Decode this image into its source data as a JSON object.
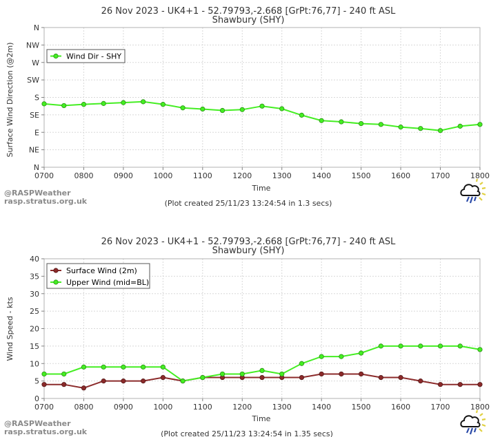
{
  "colors": {
    "green": "#44ee22",
    "green_dark": "#22aa11",
    "maroon": "#8b2a2a",
    "maroon_dark": "#5a1010"
  },
  "footer": {
    "brand_top": "@RASPWeather",
    "brand_bottom": "rasp.stratus.org.uk",
    "icon": "rain-cloud-sun-icon"
  },
  "chart_data": [
    {
      "type": "line",
      "title": "26 Nov 2023 - UK4+1 - 52.79793,-2.668 [GrPt:76,77]  - 240 ft ASL",
      "subtitle": "Shawbury (SHY)",
      "xlabel": "Time",
      "ylabel": "Surface Wind Direction (@2m)",
      "x": [
        "0700",
        "0730",
        "0800",
        "0830",
        "0900",
        "0930",
        "1000",
        "1030",
        "1100",
        "1130",
        "1200",
        "1230",
        "1300",
        "1330",
        "1400",
        "1430",
        "1500",
        "1530",
        "1600",
        "1630",
        "1700",
        "1730",
        "1800"
      ],
      "x_ticks": [
        "0700",
        "0800",
        "0900",
        "1000",
        "1100",
        "1200",
        "1300",
        "1400",
        "1500",
        "1600",
        "1700",
        "1800"
      ],
      "y_ticks": [
        "N",
        "NE",
        "E",
        "SE",
        "S",
        "SW",
        "W",
        "NW",
        "N"
      ],
      "ylim": [
        0,
        8
      ],
      "grid": true,
      "legend_position": "top-left",
      "series": [
        {
          "name": "Wind Dir - SHY",
          "color": "#44ee22",
          "values": [
            3.63,
            3.53,
            3.6,
            3.65,
            3.7,
            3.75,
            3.6,
            3.4,
            3.33,
            3.25,
            3.3,
            3.5,
            3.35,
            2.98,
            2.67,
            2.6,
            2.5,
            2.45,
            2.3,
            2.22,
            2.1,
            2.35,
            2.45
          ]
        }
      ],
      "footnote": "(Plot created 25/11/23 13:24:54 in 1.3 secs)"
    },
    {
      "type": "line",
      "title": "26 Nov 2023 - UK4+1 - 52.79793,-2.668 [GrPt:76,77]  - 240 ft ASL",
      "subtitle": "Shawbury (SHY)",
      "xlabel": "Time",
      "ylabel": "Wind Speed - kts",
      "x": [
        "0700",
        "0730",
        "0800",
        "0830",
        "0900",
        "0930",
        "1000",
        "1030",
        "1100",
        "1130",
        "1200",
        "1230",
        "1300",
        "1330",
        "1400",
        "1430",
        "1500",
        "1530",
        "1600",
        "1630",
        "1700",
        "1730",
        "1800"
      ],
      "x_ticks": [
        "0700",
        "0800",
        "0900",
        "1000",
        "1100",
        "1200",
        "1300",
        "1400",
        "1500",
        "1600",
        "1700",
        "1800"
      ],
      "y_ticks": [
        "0",
        "5",
        "10",
        "15",
        "20",
        "25",
        "30",
        "35",
        "40"
      ],
      "ylim": [
        0,
        40
      ],
      "grid": true,
      "legend_position": "top-left",
      "series": [
        {
          "name": "Surface Wind (2m)",
          "color": "#8b2a2a",
          "values": [
            4,
            4,
            3,
            5,
            5,
            5,
            6,
            5,
            6,
            6,
            6,
            6,
            6,
            6,
            7,
            7,
            7,
            6,
            6,
            5,
            4,
            4,
            4
          ]
        },
        {
          "name": "Upper Wind (mid=BL)",
          "color": "#44ee22",
          "values": [
            7,
            7,
            9,
            9,
            9,
            9,
            9,
            5,
            6,
            7,
            7,
            8,
            7,
            10,
            12,
            12,
            13,
            15,
            15,
            15,
            15,
            15,
            14
          ]
        }
      ],
      "footnote": "(Plot created 25/11/23 13:24:54 in 1.35 secs)"
    }
  ]
}
